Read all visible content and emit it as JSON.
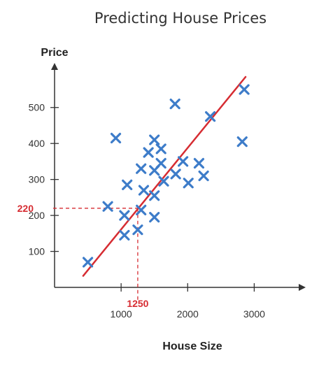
{
  "colors": {
    "marker": "#3d7cc9",
    "trend_line": "#d62c32",
    "annotation": "#d62c32",
    "axis": "#333333"
  },
  "chart_data": {
    "type": "scatter",
    "title": "Predicting House Prices",
    "xlabel": "House Size",
    "ylabel": "Price",
    "xlim": [
      0,
      3700
    ],
    "ylim": [
      0,
      620
    ],
    "x_ticks": [
      1000,
      2000,
      3000
    ],
    "y_ticks": [
      100,
      200,
      300,
      400,
      500
    ],
    "grid": false,
    "marker": "x",
    "points": [
      {
        "x": 500,
        "y": 70
      },
      {
        "x": 800,
        "y": 225
      },
      {
        "x": 920,
        "y": 415
      },
      {
        "x": 1050,
        "y": 145
      },
      {
        "x": 1050,
        "y": 200
      },
      {
        "x": 1090,
        "y": 285
      },
      {
        "x": 1250,
        "y": 160
      },
      {
        "x": 1300,
        "y": 330
      },
      {
        "x": 1300,
        "y": 215
      },
      {
        "x": 1340,
        "y": 270
      },
      {
        "x": 1410,
        "y": 375
      },
      {
        "x": 1500,
        "y": 410
      },
      {
        "x": 1500,
        "y": 325
      },
      {
        "x": 1500,
        "y": 255
      },
      {
        "x": 1500,
        "y": 195
      },
      {
        "x": 1600,
        "y": 385
      },
      {
        "x": 1600,
        "y": 345
      },
      {
        "x": 1640,
        "y": 295
      },
      {
        "x": 1810,
        "y": 510
      },
      {
        "x": 1820,
        "y": 315
      },
      {
        "x": 1930,
        "y": 350
      },
      {
        "x": 2010,
        "y": 290
      },
      {
        "x": 2170,
        "y": 345
      },
      {
        "x": 2240,
        "y": 310
      },
      {
        "x": 2340,
        "y": 475
      },
      {
        "x": 2820,
        "y": 405
      },
      {
        "x": 2850,
        "y": 550
      }
    ],
    "trend_line": {
      "x": [
        430,
        2870
      ],
      "y": [
        32,
        585
      ]
    },
    "annotation": {
      "x": 1250,
      "y": 220,
      "x_label": "1250",
      "y_label": "220"
    }
  }
}
